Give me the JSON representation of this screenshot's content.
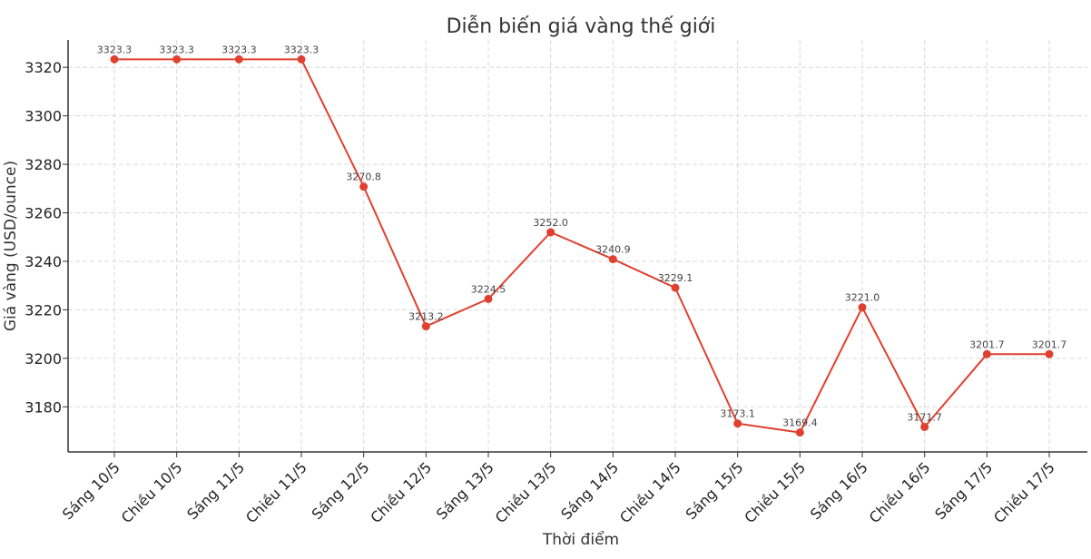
{
  "chart_data": {
    "type": "line",
    "title": "Diễn biến giá vàng thế giới",
    "xlabel": "Thời điểm",
    "ylabel": "Giá vàng (USD/ounce)",
    "categories": [
      "Sáng 10/5",
      "Chiều 10/5",
      "Sáng 11/5",
      "Chiều 11/5",
      "Sáng 12/5",
      "Chiều 12/5",
      "Sáng 13/5",
      "Chiều 13/5",
      "Sáng 14/5",
      "Chiều 14/5",
      "Sáng 15/5",
      "Chiều 15/5",
      "Sáng 16/5",
      "Chiều 16/5",
      "Sáng 17/5",
      "Chiều 17/5"
    ],
    "series": [
      {
        "values": [
          3323.3,
          3323.3,
          3323.3,
          3323.3,
          3270.8,
          3213.2,
          3224.5,
          3252.0,
          3240.9,
          3229.1,
          3173.1,
          3169.4,
          3221.0,
          3171.7,
          3201.7,
          3201.7
        ],
        "labels": [
          "3323.3",
          "3323.3",
          "3323.3",
          "3323.3",
          "3270.8",
          "3213.2",
          "3224.5",
          "3252.0",
          "3240.9",
          "3229.1",
          "3173.1",
          "3169.4",
          "3221.0",
          "3171.7",
          "3201.7",
          "3201.7"
        ],
        "color": "#e0402f"
      }
    ],
    "yticks": [
      3180,
      3200,
      3220,
      3240,
      3260,
      3280,
      3300,
      3320
    ],
    "ylim": [
      3161.4,
      3331.3
    ],
    "grid": true
  }
}
